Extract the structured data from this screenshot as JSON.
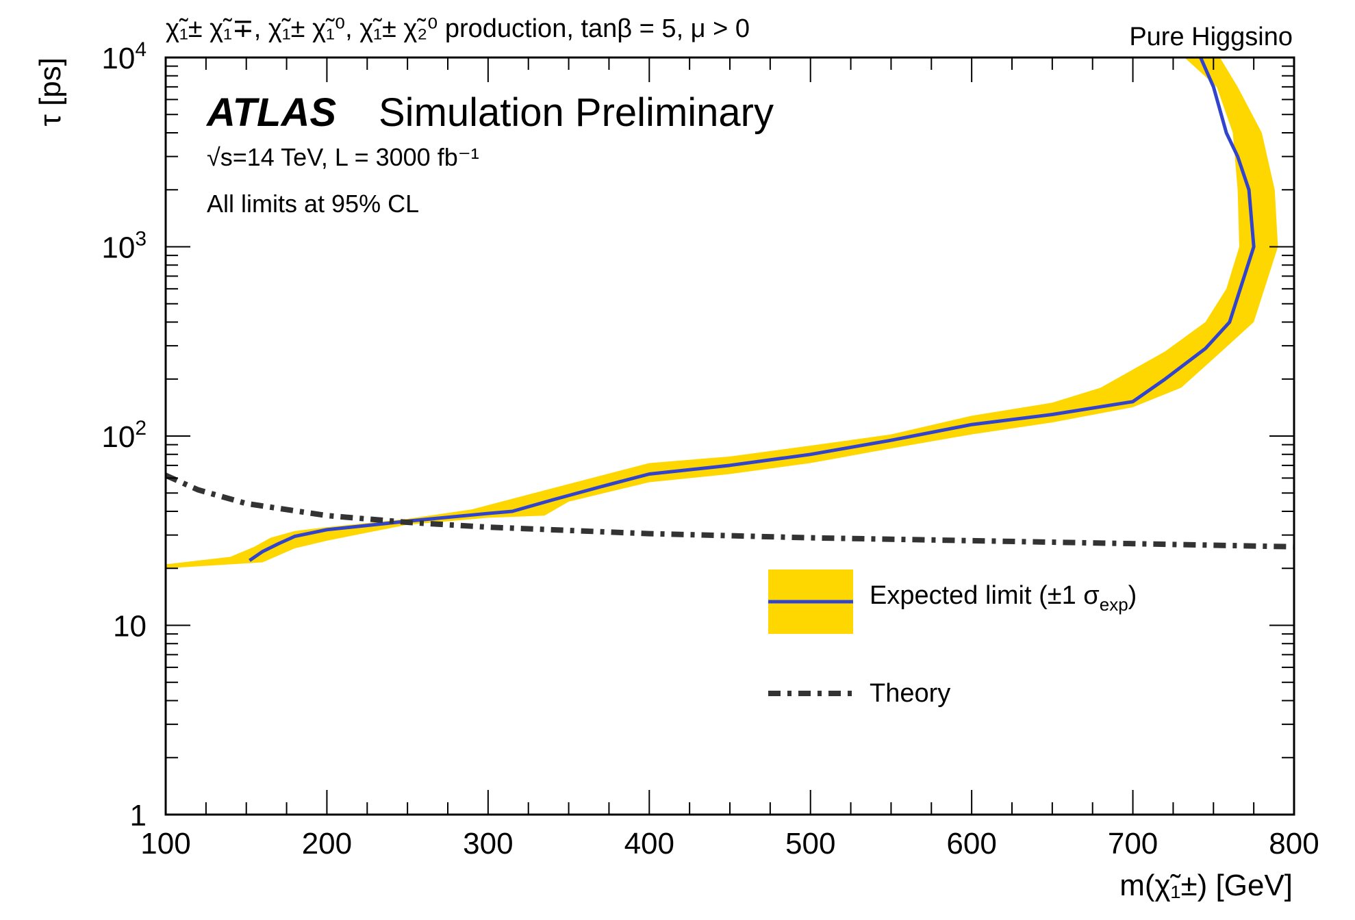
{
  "chart_data": {
    "type": "line",
    "process_label": "χ̃₁± χ̃₁∓, χ̃₁± χ̃₁⁰, χ̃₁± χ̃₂⁰ production, tanβ = 5, μ > 0",
    "scenario_label": "Pure Higgsino",
    "experiment": "ATLAS",
    "status": "Simulation Preliminary",
    "energy_lumi": "√s=14 TeV, L = 3000 fb⁻¹",
    "cl_note": "All limits at 95% CL",
    "xlabel": "m(χ̃₁±) [GeV]",
    "ylabel": "τ [ps]",
    "xlim": [
      100,
      800
    ],
    "ylim": [
      1,
      10000
    ],
    "yscale": "log",
    "x_tick_labels": [
      "100",
      "200",
      "300",
      "400",
      "500",
      "600",
      "700",
      "800"
    ],
    "y_tick_labels": [
      {
        "base": "1",
        "exp": ""
      },
      {
        "base": "10",
        "exp": ""
      },
      {
        "base": "10",
        "exp": "2"
      },
      {
        "base": "10",
        "exp": "3"
      },
      {
        "base": "10",
        "exp": "4"
      }
    ],
    "grid": false,
    "legend": {
      "position": "center-right",
      "expected_label": "Expected limit (±1 σ",
      "expected_label_sub": "exp",
      "expected_label_end": ")",
      "theory_label": "Theory"
    },
    "series": [
      {
        "name": "Expected limit (±1 σexp)",
        "style": "line",
        "color": "#3344cc",
        "points": [
          [
            152,
            22
          ],
          [
            160,
            24.5
          ],
          [
            170,
            27
          ],
          [
            180,
            29.5
          ],
          [
            200,
            32
          ],
          [
            250,
            35.5
          ],
          [
            300,
            39
          ],
          [
            315,
            40
          ],
          [
            340,
            46
          ],
          [
            370,
            54
          ],
          [
            400,
            63
          ],
          [
            450,
            70
          ],
          [
            500,
            80
          ],
          [
            550,
            95
          ],
          [
            600,
            115
          ],
          [
            650,
            130
          ],
          [
            700,
            152
          ],
          [
            720,
            200
          ],
          [
            745,
            290
          ],
          [
            760,
            400
          ],
          [
            775,
            1000
          ],
          [
            772,
            2000
          ],
          [
            765,
            3000
          ],
          [
            758,
            4000
          ],
          [
            750,
            7000
          ],
          [
            742,
            10000
          ]
        ]
      },
      {
        "name": "±1 σexp band",
        "style": "band",
        "color": "#ffd700",
        "upper": [
          [
            100,
            21
          ],
          [
            140,
            23
          ],
          [
            155,
            26
          ],
          [
            165,
            29
          ],
          [
            180,
            31.5
          ],
          [
            200,
            33
          ],
          [
            250,
            36.5
          ],
          [
            290,
            41
          ],
          [
            340,
            53
          ],
          [
            400,
            72
          ],
          [
            450,
            78
          ],
          [
            500,
            89
          ],
          [
            550,
            102
          ],
          [
            600,
            128
          ],
          [
            650,
            150
          ],
          [
            680,
            180
          ],
          [
            720,
            280
          ],
          [
            745,
            400
          ],
          [
            758,
            600
          ],
          [
            766,
            1000
          ],
          [
            765,
            2000
          ],
          [
            762,
            4000
          ],
          [
            752,
            7000
          ],
          [
            732,
            10000
          ]
        ],
        "lower": [
          [
            100,
            20
          ],
          [
            160,
            21.5
          ],
          [
            180,
            25.5
          ],
          [
            200,
            28
          ],
          [
            250,
            34
          ],
          [
            300,
            37
          ],
          [
            335,
            38
          ],
          [
            350,
            45
          ],
          [
            400,
            57
          ],
          [
            450,
            63
          ],
          [
            500,
            72
          ],
          [
            550,
            86
          ],
          [
            600,
            102
          ],
          [
            650,
            118
          ],
          [
            700,
            142
          ],
          [
            730,
            180
          ],
          [
            757,
            290
          ],
          [
            775,
            400
          ],
          [
            790,
            1000
          ],
          [
            788,
            2000
          ],
          [
            780,
            4000
          ],
          [
            765,
            7000
          ],
          [
            754,
            10000
          ]
        ]
      },
      {
        "name": "Theory",
        "style": "dash-dot",
        "color": "#333333",
        "points": [
          [
            100,
            62
          ],
          [
            120,
            52
          ],
          [
            150,
            44
          ],
          [
            200,
            38
          ],
          [
            250,
            35
          ],
          [
            300,
            33
          ],
          [
            400,
            30.5
          ],
          [
            500,
            29
          ],
          [
            600,
            28
          ],
          [
            700,
            27
          ],
          [
            800,
            26
          ]
        ]
      }
    ]
  }
}
